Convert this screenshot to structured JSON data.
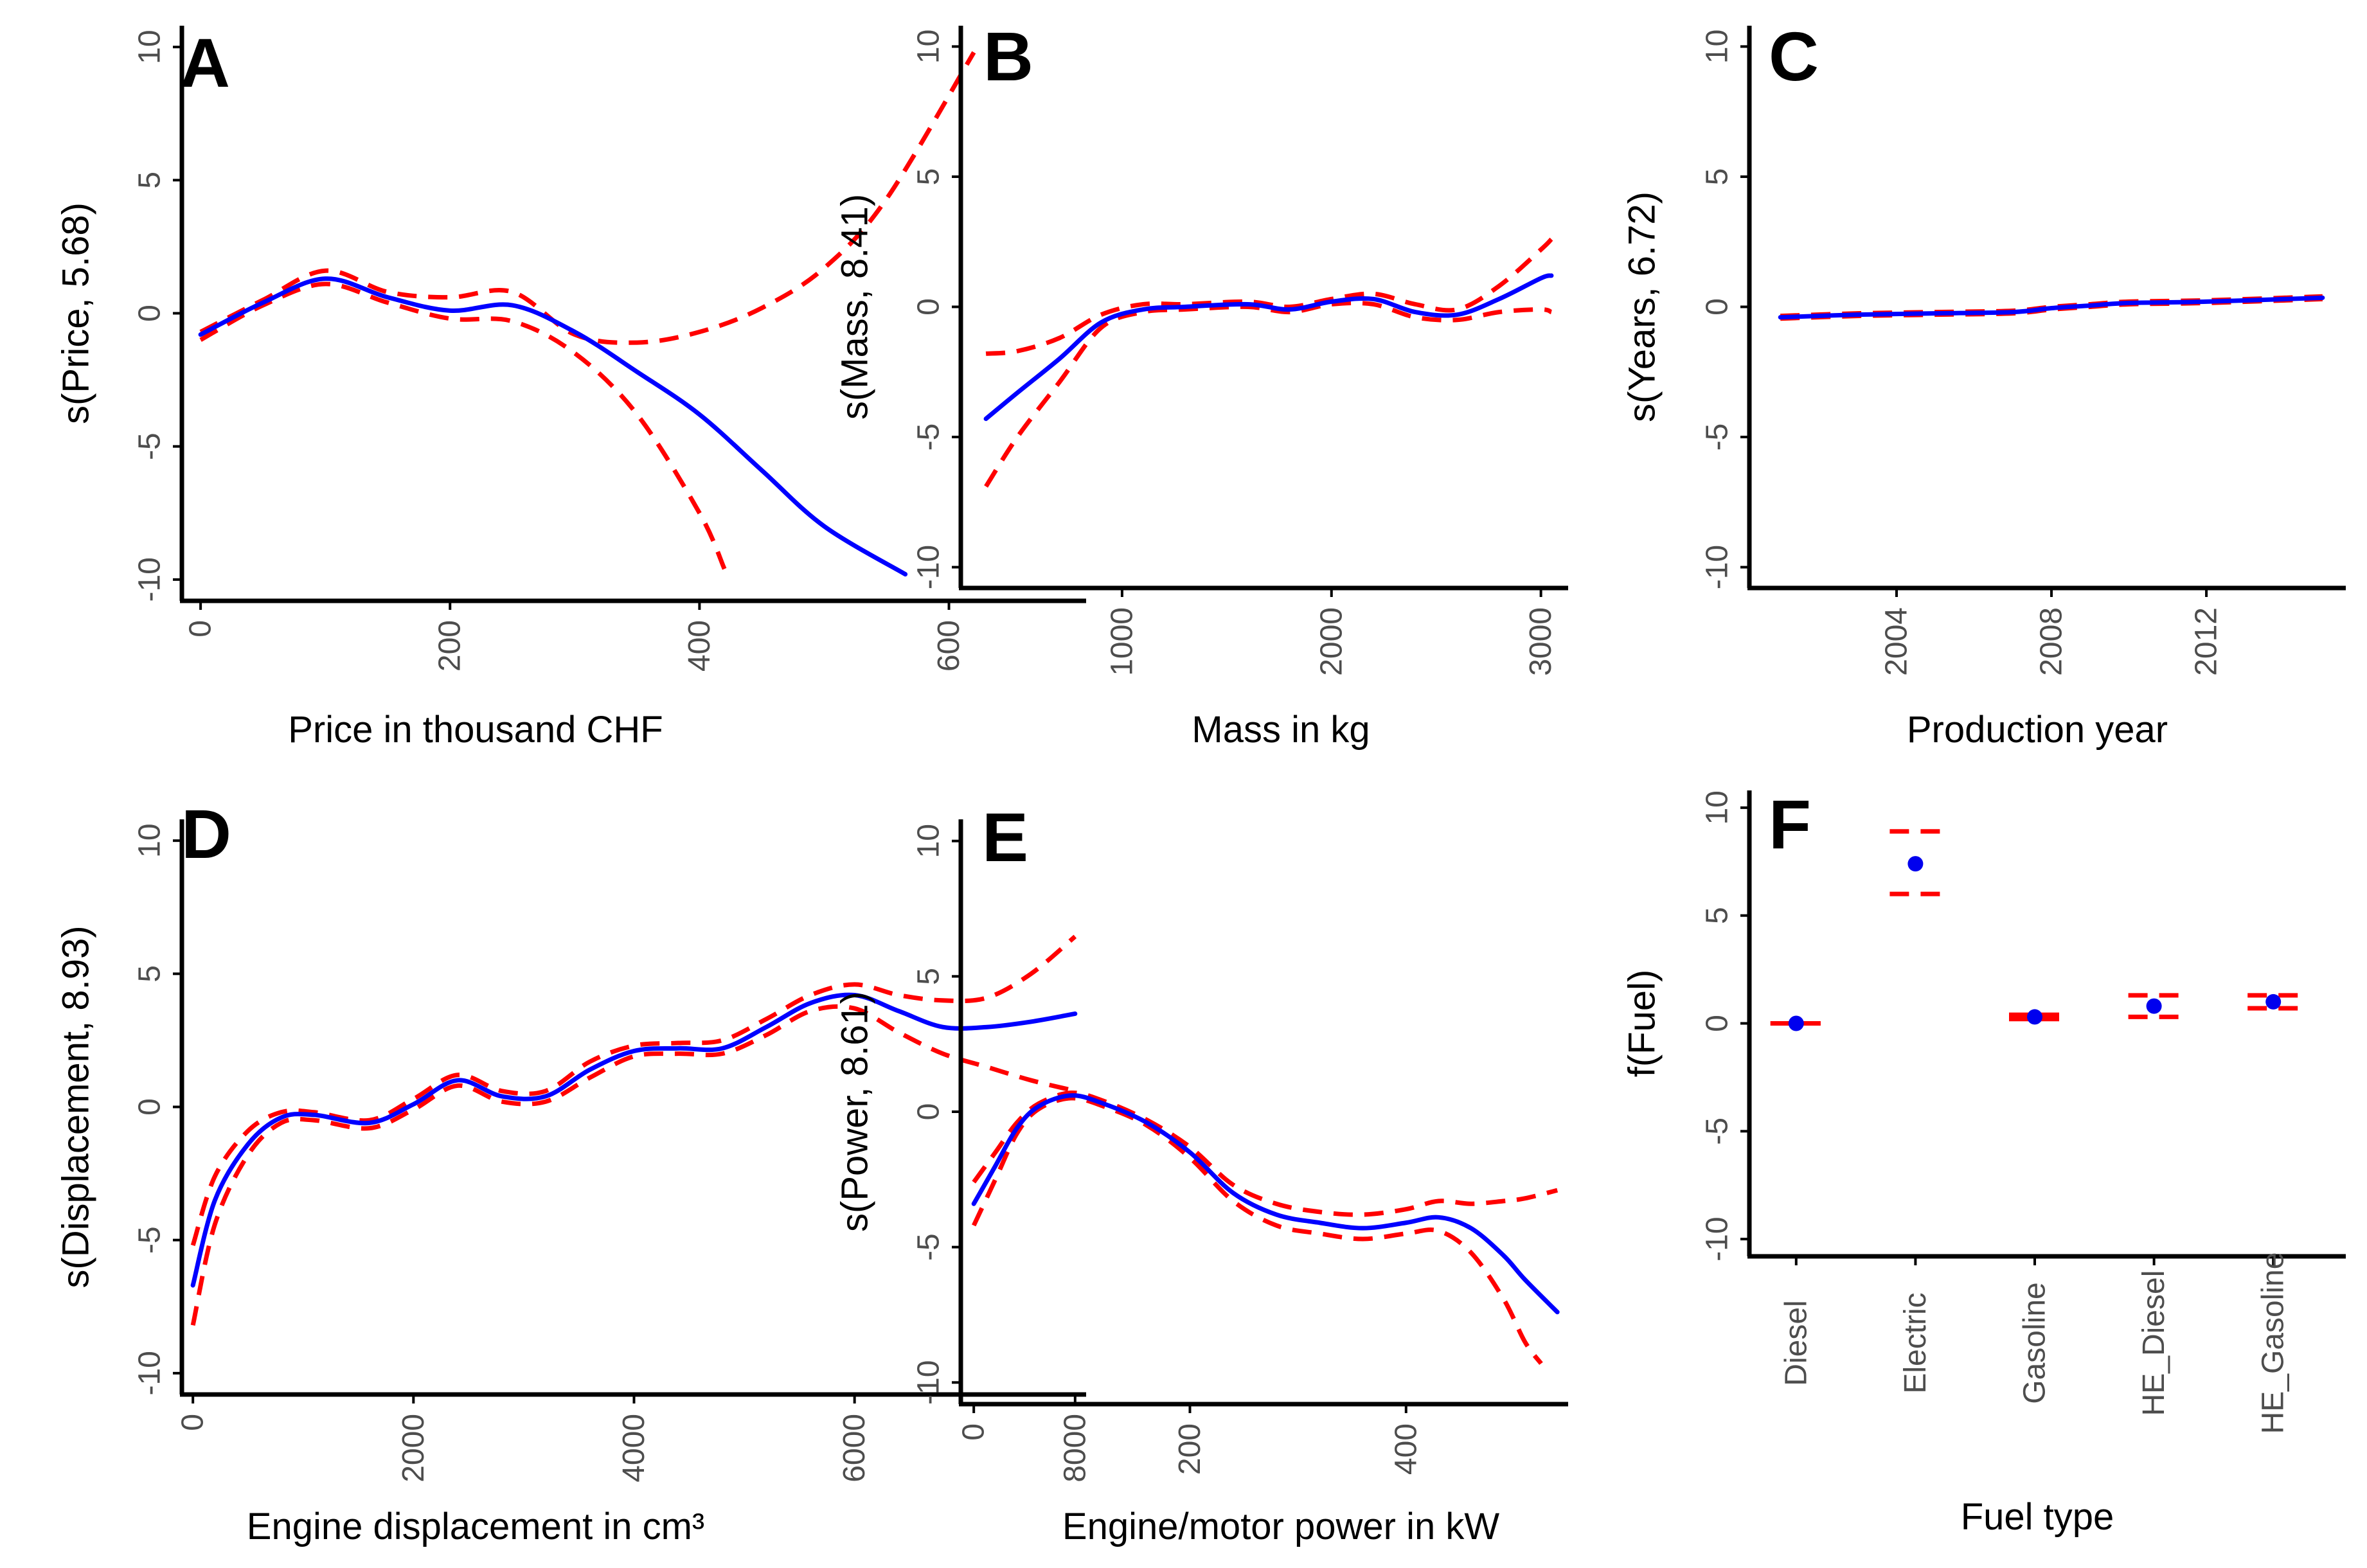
{
  "chart_data": [
    {
      "type": "line",
      "panel": "A",
      "ylabel": "s(Price, 5.68)",
      "xlabel": "Price in thousand CHF",
      "xlim": [
        -15,
        710
      ],
      "ylim": [
        -10.8,
        10.8
      ],
      "xticks": [
        "0",
        "200",
        "400",
        "600"
      ],
      "yticks": [
        "10",
        "5",
        "0",
        "-5",
        "-10"
      ],
      "series": [
        {
          "name": "fit",
          "x": [
            0,
            50,
            100,
            150,
            200,
            250,
            300,
            350,
            400,
            450,
            500,
            565
          ],
          "y": [
            -0.8,
            0.4,
            1.3,
            0.6,
            0.1,
            0.3,
            -0.7,
            -2.2,
            -3.8,
            -5.9,
            -8.0,
            -9.8
          ]
        },
        {
          "name": "upper",
          "x": [
            0,
            50,
            100,
            150,
            200,
            250,
            300,
            350,
            400,
            450,
            500,
            550,
            620
          ],
          "y": [
            -0.7,
            0.5,
            1.6,
            0.8,
            0.6,
            0.8,
            -0.8,
            -1.1,
            -0.7,
            0.2,
            1.7,
            4.3,
            9.8
          ]
        },
        {
          "name": "lower",
          "x": [
            0,
            50,
            100,
            150,
            200,
            250,
            300,
            350,
            400,
            420
          ],
          "y": [
            -1.0,
            0.3,
            1.1,
            0.4,
            -0.2,
            -0.3,
            -1.5,
            -3.8,
            -7.5,
            -9.6
          ]
        }
      ]
    },
    {
      "type": "line",
      "panel": "B",
      "ylabel": "s(Mass, 8.41)",
      "xlabel": "Mass in kg",
      "xlim": [
        230,
        3130
      ],
      "ylim": [
        -10.8,
        10.8
      ],
      "xticks": [
        "1000",
        "2000",
        "3000"
      ],
      "yticks": [
        "10",
        "5",
        "0",
        "-5",
        "-10"
      ],
      "series": [
        {
          "name": "fit",
          "x": [
            350,
            500,
            700,
            900,
            1100,
            1300,
            1600,
            1800,
            2000,
            2200,
            2400,
            2600,
            2800,
            3000,
            3050
          ],
          "y": [
            -4.3,
            -3.3,
            -2.0,
            -0.6,
            -0.1,
            0.0,
            0.1,
            -0.1,
            0.2,
            0.3,
            -0.2,
            -0.3,
            0.3,
            1.1,
            1.2
          ]
        },
        {
          "name": "upper",
          "x": [
            350,
            500,
            700,
            900,
            1100,
            1300,
            1600,
            1800,
            2000,
            2200,
            2400,
            2600,
            2800,
            3000,
            3050
          ],
          "y": [
            -1.8,
            -1.7,
            -1.2,
            -0.3,
            0.1,
            0.1,
            0.2,
            0.0,
            0.3,
            0.5,
            0.1,
            -0.1,
            0.8,
            2.2,
            2.6
          ]
        },
        {
          "name": "lower",
          "x": [
            350,
            500,
            700,
            900,
            1100,
            1300,
            1600,
            1800,
            2000,
            2200,
            2400,
            2600,
            2800,
            3000,
            3050
          ],
          "y": [
            -6.9,
            -5.0,
            -2.9,
            -0.8,
            -0.2,
            -0.1,
            0.0,
            -0.2,
            0.1,
            0.1,
            -0.4,
            -0.5,
            -0.2,
            -0.1,
            -0.2
          ]
        }
      ]
    },
    {
      "type": "line",
      "panel": "C",
      "ylabel": "s(Years, 6.72)",
      "xlabel": "Production year",
      "xlim": [
        2000.2,
        2015.6
      ],
      "ylim": [
        -10.8,
        10.8
      ],
      "xticks": [
        "2004",
        "2008",
        "2012"
      ],
      "yticks": [
        "10",
        "5",
        "0",
        "-5",
        "-10"
      ],
      "series": [
        {
          "name": "fit",
          "x": [
            2001,
            2003,
            2005,
            2007,
            2008,
            2009,
            2010,
            2012,
            2015
          ],
          "y": [
            -0.4,
            -0.3,
            -0.25,
            -0.2,
            -0.05,
            0.05,
            0.15,
            0.2,
            0.35
          ]
        },
        {
          "name": "upper",
          "x": [
            2001,
            2003,
            2005,
            2007,
            2008,
            2009,
            2010,
            2012,
            2015
          ],
          "y": [
            -0.35,
            -0.25,
            -0.2,
            -0.15,
            0.0,
            0.1,
            0.2,
            0.25,
            0.4
          ]
        },
        {
          "name": "lower",
          "x": [
            2001,
            2003,
            2005,
            2007,
            2008,
            2009,
            2010,
            2012,
            2015
          ],
          "y": [
            -0.45,
            -0.35,
            -0.3,
            -0.25,
            -0.1,
            0.0,
            0.1,
            0.15,
            0.3
          ]
        }
      ]
    },
    {
      "type": "line",
      "panel": "D",
      "ylabel": "s(Displacement, 8.93)",
      "xlabel": "Engine displacement in cm³",
      "xlim": [
        -100,
        8100
      ],
      "ylim": [
        -10.8,
        10.8
      ],
      "xticks": [
        "0",
        "2000",
        "4000",
        "6000",
        "8000"
      ],
      "yticks": [
        "10",
        "5",
        "0",
        "-5",
        "-10"
      ],
      "series": [
        {
          "name": "fit",
          "x": [
            0,
            200,
            500,
            800,
            1100,
            1600,
            2000,
            2400,
            2800,
            3200,
            3600,
            4000,
            4400,
            4800,
            5200,
            5600,
            6000,
            6400,
            6800,
            7200,
            7600,
            8000
          ],
          "y": [
            -6.7,
            -3.5,
            -1.4,
            -0.4,
            -0.3,
            -0.6,
            0.1,
            1.0,
            0.4,
            0.4,
            1.4,
            2.1,
            2.2,
            2.2,
            3.0,
            3.9,
            4.2,
            3.6,
            3.0,
            3.0,
            3.2,
            3.5
          ]
        },
        {
          "name": "upper",
          "x": [
            0,
            200,
            500,
            800,
            1100,
            1600,
            2000,
            2400,
            2800,
            3200,
            3600,
            4000,
            4400,
            4800,
            5200,
            5600,
            6000,
            6400,
            6800,
            7200,
            7600,
            8000
          ],
          "y": [
            -5.2,
            -2.6,
            -0.9,
            -0.2,
            -0.2,
            -0.5,
            0.3,
            1.2,
            0.6,
            0.6,
            1.7,
            2.3,
            2.4,
            2.5,
            3.3,
            4.2,
            4.6,
            4.2,
            4.0,
            4.1,
            5.0,
            6.4
          ]
        },
        {
          "name": "lower",
          "x": [
            0,
            200,
            500,
            800,
            1100,
            1600,
            2000,
            2400,
            2800,
            3200,
            3600,
            4000,
            4400,
            4800,
            5200,
            5600,
            6000,
            6400,
            6800,
            7200,
            7600,
            8000
          ],
          "y": [
            -8.2,
            -4.4,
            -1.8,
            -0.6,
            -0.5,
            -0.8,
            -0.1,
            0.8,
            0.2,
            0.2,
            1.1,
            1.9,
            2.0,
            2.0,
            2.7,
            3.6,
            3.7,
            2.8,
            2.0,
            1.5,
            1.0,
            0.6
          ]
        }
      ]
    },
    {
      "type": "line",
      "panel": "E",
      "ylabel": "s(Power, 8.61)",
      "xlabel": "Engine/motor power in kW",
      "xlim": [
        -12,
        550
      ],
      "ylim": [
        -10.8,
        10.8
      ],
      "xticks": [
        "0",
        "200",
        "400"
      ],
      "yticks": [
        "10",
        "5",
        "0",
        "-5",
        "-10"
      ],
      "series": [
        {
          "name": "fit",
          "x": [
            0,
            20,
            40,
            60,
            90,
            120,
            160,
            200,
            240,
            280,
            320,
            360,
            400,
            430,
            460,
            490,
            510,
            540
          ],
          "y": [
            -3.4,
            -2.0,
            -0.6,
            0.2,
            0.6,
            0.3,
            -0.4,
            -1.5,
            -3.0,
            -3.8,
            -4.1,
            -4.3,
            -4.1,
            -3.9,
            -4.3,
            -5.3,
            -6.2,
            -7.4
          ]
        },
        {
          "name": "upper",
          "x": [
            0,
            20,
            40,
            60,
            90,
            120,
            160,
            200,
            240,
            280,
            320,
            360,
            400,
            430,
            460,
            490,
            510,
            540
          ],
          "y": [
            -2.6,
            -1.5,
            -0.4,
            0.3,
            0.7,
            0.4,
            -0.3,
            -1.3,
            -2.7,
            -3.4,
            -3.7,
            -3.8,
            -3.6,
            -3.3,
            -3.4,
            -3.3,
            -3.2,
            -2.9
          ]
        },
        {
          "name": "lower",
          "x": [
            0,
            20,
            40,
            60,
            90,
            120,
            160,
            200,
            240,
            280,
            320,
            360,
            400,
            430,
            460,
            490,
            510,
            525
          ],
          "y": [
            -4.2,
            -2.5,
            -0.8,
            0.1,
            0.5,
            0.2,
            -0.5,
            -1.7,
            -3.3,
            -4.2,
            -4.5,
            -4.7,
            -4.5,
            -4.4,
            -5.2,
            -6.9,
            -8.5,
            -9.3
          ]
        }
      ]
    },
    {
      "type": "scatter",
      "panel": "F",
      "ylabel": "f(Fuel)",
      "xlabel": "Fuel type",
      "ylim": [
        -10.8,
        10.8
      ],
      "categories": [
        "Diesel",
        "Electric",
        "Gasoline",
        "HE_Diesel",
        "HE_Gasoline"
      ],
      "yticks": [
        "10",
        "5",
        "0",
        "-5",
        "-10"
      ],
      "values": [
        0.0,
        7.4,
        0.3,
        0.8,
        1.0
      ],
      "upper": [
        0.0,
        8.9,
        0.4,
        1.3,
        1.3
      ],
      "lower": [
        0.0,
        6.0,
        0.2,
        0.3,
        0.7
      ]
    }
  ],
  "panel_labels": [
    "A",
    "B",
    "C",
    "D",
    "E",
    "F"
  ],
  "colors": {
    "fit": "#0000ff",
    "ci": "#ff0000",
    "point": "#0000ee",
    "axis": "#000000",
    "tick_text": "#4d4d4d"
  }
}
